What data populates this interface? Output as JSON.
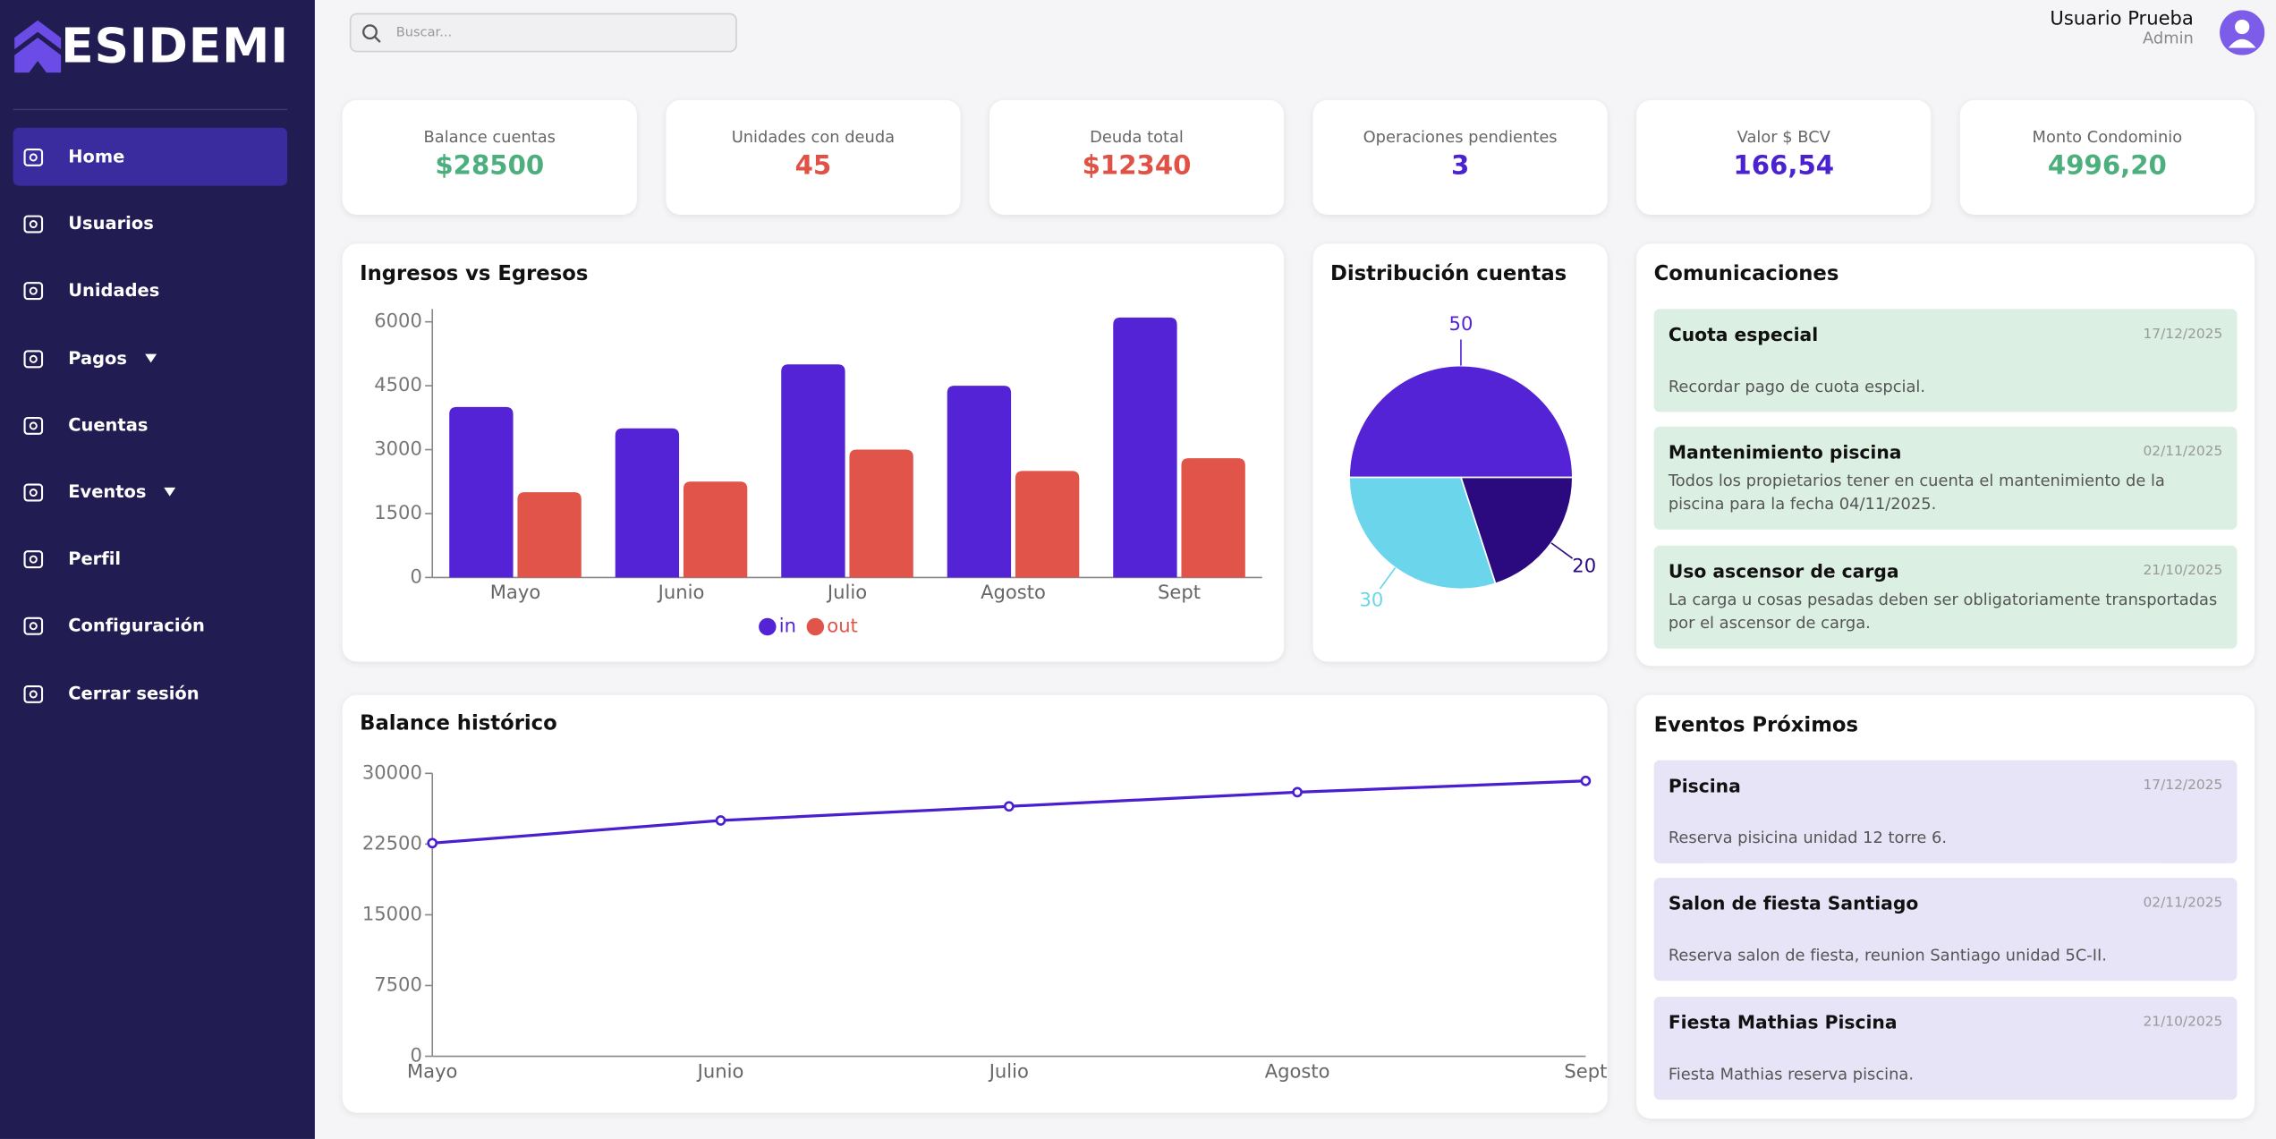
{
  "sidebar": {
    "brand": "ESIDEMI",
    "nav": [
      {
        "label": "Home",
        "active": true
      },
      {
        "label": "Usuarios"
      },
      {
        "label": "Unidades"
      },
      {
        "label": "Pagos",
        "submenu": true
      },
      {
        "label": "Cuentas"
      },
      {
        "label": "Eventos",
        "submenu": true
      },
      {
        "label": "Perfil"
      },
      {
        "label": "Configuración"
      },
      {
        "label": "Cerrar sesión"
      }
    ]
  },
  "header": {
    "search_placeholder": "Buscar...",
    "user_name": "Usuario Prueba",
    "user_role": "Admin"
  },
  "stats": [
    {
      "label": "Balance cuentas",
      "value": "$28500",
      "color": "#4caf7d"
    },
    {
      "label": "Unidades con deuda",
      "value": "45",
      "color": "#e05246"
    },
    {
      "label": "Deuda total",
      "value": "$12340",
      "color": "#e05246"
    },
    {
      "label": "Operaciones pendientes",
      "value": "3",
      "color": "#4a22d0"
    },
    {
      "label": "Valor $ BCV",
      "value": "166,54",
      "color": "#4a22d0"
    },
    {
      "label": "Monto Condominio",
      "value": "4996,20",
      "color": "#4caf7d"
    }
  ],
  "bar_chart": {
    "type": "bar",
    "title": "Ingresos vs Egresos",
    "categories": [
      "Mayo",
      "Junio",
      "Julio",
      "Agosto",
      "Sept"
    ],
    "series": [
      {
        "name": "in",
        "color": "#5423d6",
        "values": [
          4000,
          3500,
          5000,
          4500,
          6100
        ]
      },
      {
        "name": "out",
        "color": "#e05449",
        "values": [
          2000,
          2250,
          3000,
          2500,
          2800
        ]
      }
    ],
    "ylim": [
      0,
      6300
    ],
    "yticks": [
      0,
      1500,
      3000,
      4500,
      6000
    ]
  },
  "pie_chart": {
    "type": "pie",
    "title": "Distribución cuentas",
    "values": [
      50,
      20,
      30
    ],
    "colors": [
      "#5423d6",
      "#2b0a80",
      "#6bd5ec"
    ]
  },
  "line_chart": {
    "type": "line",
    "title": "Balance histórico",
    "categories": [
      "Mayo",
      "Junio",
      "Julio",
      "Agosto",
      "Sept"
    ],
    "series": [
      {
        "color": "#4a1fd0",
        "values": [
          22600,
          25000,
          26500,
          28000,
          29200
        ]
      }
    ],
    "ylim": [
      0,
      30000
    ],
    "yticks": [
      0,
      7500,
      15000,
      22500,
      30000
    ]
  },
  "communications": {
    "title": "Comunicaciones",
    "items": [
      {
        "title": "Cuota especial",
        "date": "17/12/2025",
        "text": "Recordar pago de cuota espcial."
      },
      {
        "title": "Mantenimiento piscina",
        "date": "02/11/2025",
        "text": "Todos los propietarios tener en cuenta el mantenimiento de la piscina para la fecha 04/11/2025."
      },
      {
        "title": "Uso ascensor de carga",
        "date": "21/10/2025",
        "text": "La carga u cosas pesadas deben ser obligatoriamente transportadas por el ascensor de carga."
      }
    ]
  },
  "events": {
    "title": "Eventos Próximos",
    "items": [
      {
        "title": "Piscina",
        "date": "17/12/2025",
        "text": "Reserva pisicina unidad 12 torre 6."
      },
      {
        "title": "Salon de fiesta Santiago",
        "date": "02/11/2025",
        "text": "Reserva salon de fiesta, reunion Santiago unidad 5C-II."
      },
      {
        "title": "Fiesta Mathias Piscina",
        "date": "21/10/2025",
        "text": "Fiesta Mathias reserva piscina."
      }
    ]
  }
}
